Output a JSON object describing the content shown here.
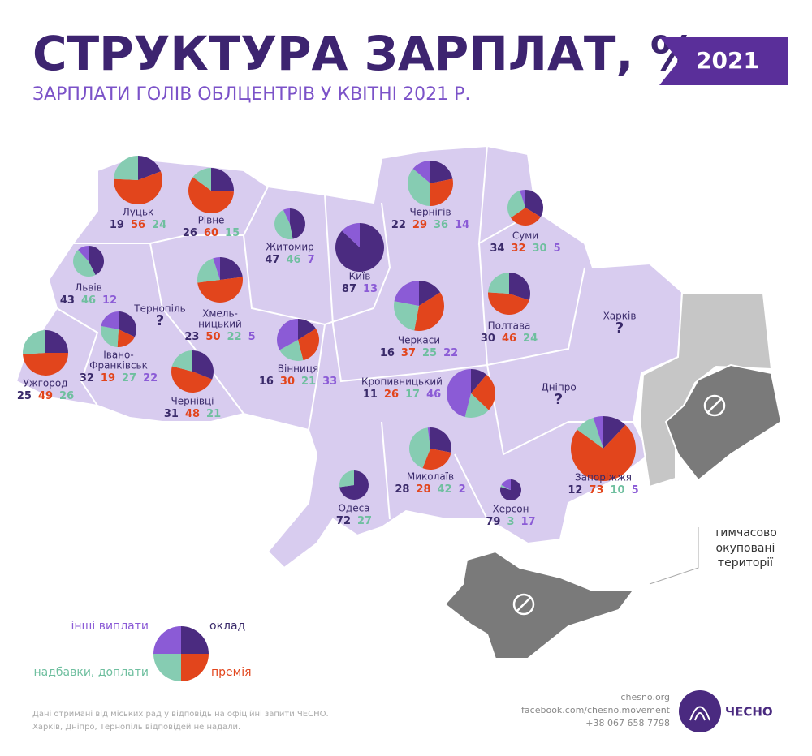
{
  "header": {
    "title": "СТРУКТУРА ЗАРПЛАТ, %",
    "subtitle": "ЗАРПЛАТИ ГОЛІВ ОБЛЦЕНТРІВ У КВІТНІ 2021 Р.",
    "year": "2021"
  },
  "chart_data": {
    "type": "pie-map",
    "series": [
      {
        "name": "оклад",
        "color": "#4b2b80"
      },
      {
        "name": "премія",
        "color": "#e2451c"
      },
      {
        "name": "надбавки, доплати",
        "color": "#86ccb2"
      },
      {
        "name": "інші виплати",
        "color": "#8b5bd6"
      }
    ],
    "cities": [
      {
        "name_lines": [
          "Луцьк"
        ],
        "values": [
          19,
          56,
          24,
          null
        ]
      },
      {
        "name_lines": [
          "Рівне"
        ],
        "values": [
          26,
          60,
          15,
          null
        ]
      },
      {
        "name_lines": [
          "Житомир"
        ],
        "values": [
          47,
          null,
          46,
          7
        ]
      },
      {
        "name_lines": [
          "Київ"
        ],
        "values": [
          87,
          null,
          null,
          13
        ]
      },
      {
        "name_lines": [
          "Чернігів"
        ],
        "values": [
          22,
          29,
          36,
          14
        ]
      },
      {
        "name_lines": [
          "Суми"
        ],
        "values": [
          34,
          32,
          30,
          5
        ]
      },
      {
        "name_lines": [
          "Львів"
        ],
        "values": [
          43,
          null,
          46,
          12
        ]
      },
      {
        "name_lines": [
          "Тернопіль"
        ],
        "note": "?"
      },
      {
        "name_lines": [
          "Хмель-",
          "ницький"
        ],
        "values": [
          23,
          50,
          22,
          5
        ]
      },
      {
        "name_lines": [
          "Івано-",
          "Франківськ"
        ],
        "values": [
          32,
          19,
          27,
          22
        ]
      },
      {
        "name_lines": [
          "Ужгород"
        ],
        "values": [
          25,
          49,
          26,
          null
        ]
      },
      {
        "name_lines": [
          "Чернівці"
        ],
        "values": [
          31,
          48,
          21,
          null
        ]
      },
      {
        "name_lines": [
          "Вінниця"
        ],
        "values": [
          16,
          30,
          21,
          33
        ]
      },
      {
        "name_lines": [
          "Черкаси"
        ],
        "values": [
          16,
          37,
          25,
          22
        ]
      },
      {
        "name_lines": [
          "Полтава"
        ],
        "values": [
          30,
          46,
          24,
          null
        ]
      },
      {
        "name_lines": [
          "Харків"
        ],
        "note": "?"
      },
      {
        "name_lines": [
          "Кропивницький"
        ],
        "values": [
          11,
          26,
          17,
          46
        ]
      },
      {
        "name_lines": [
          "Дніпро"
        ],
        "note": "?"
      },
      {
        "name_lines": [
          "Запоріжжя"
        ],
        "values": [
          12,
          73,
          10,
          5
        ]
      },
      {
        "name_lines": [
          "Миколаїв"
        ],
        "values": [
          28,
          28,
          42,
          2
        ]
      },
      {
        "name_lines": [
          "Одеса"
        ],
        "values": [
          72,
          null,
          27,
          null
        ]
      },
      {
        "name_lines": [
          "Херсон"
        ],
        "values": [
          79,
          null,
          3,
          17
        ]
      }
    ]
  },
  "occupied_label": [
    "тимчасово",
    "окуповані",
    "території"
  ],
  "footnote": [
    "Дані отримані від міських рад у відповідь на офіційні запити ЧЕСНО.",
    "Харків, Дніпро, Тернопіль відповідей не надали."
  ],
  "contacts": [
    "chesno.org",
    "facebook.com/chesno.movement",
    "+38 067 658 7798"
  ],
  "logo": "ЧЕСНО"
}
